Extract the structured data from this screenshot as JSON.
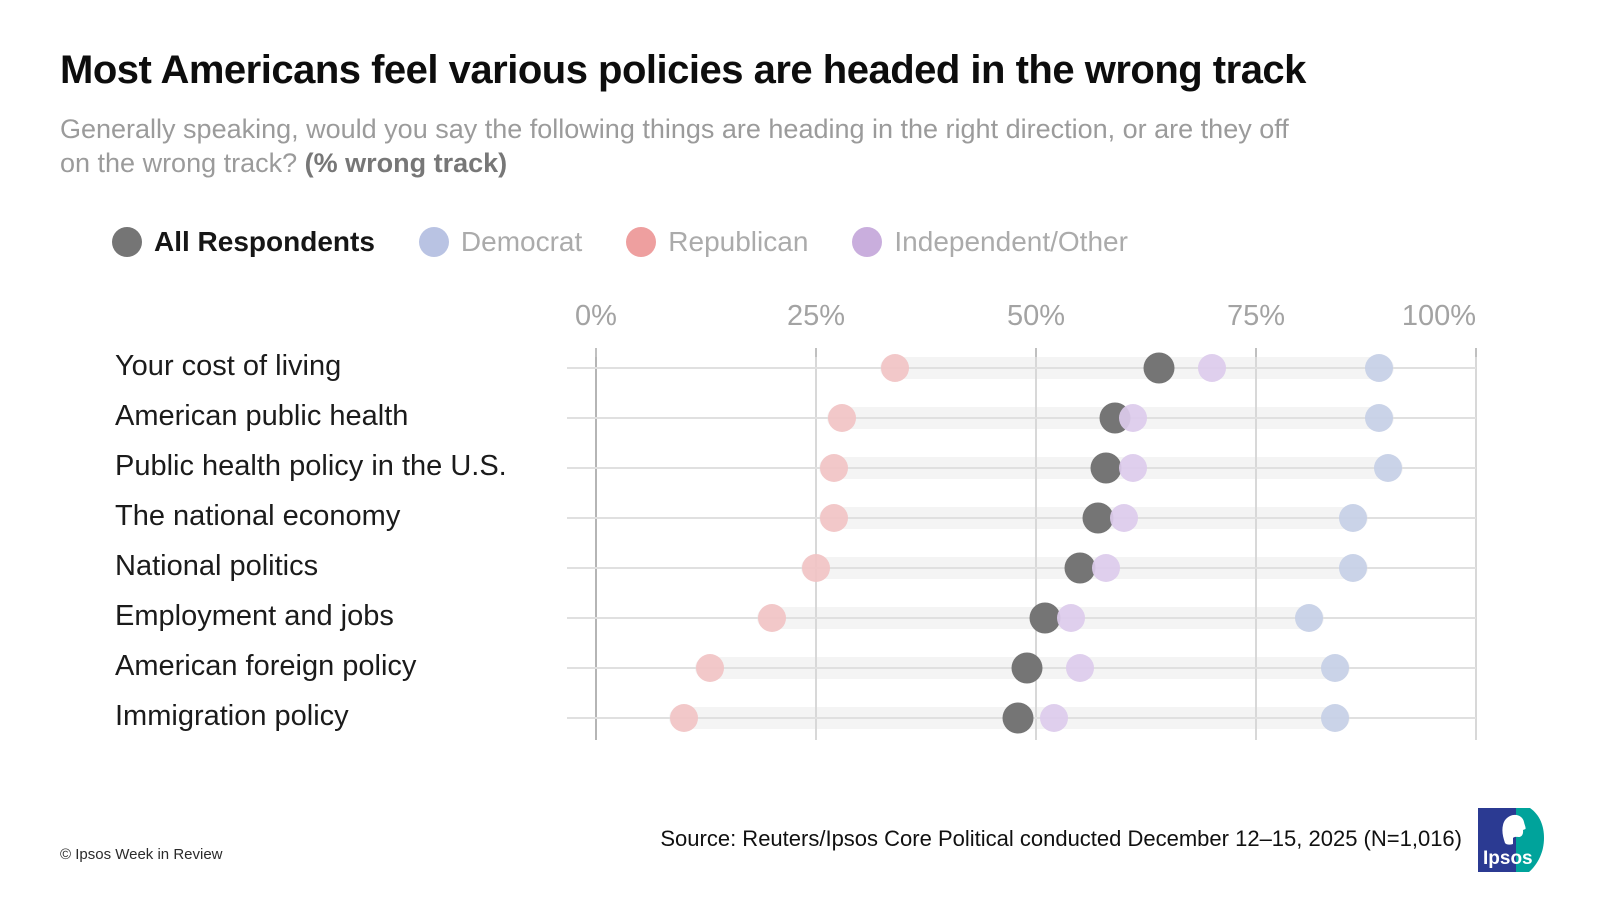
{
  "header": {
    "title": "Most Americans feel various policies are headed in the wrong track",
    "subtitle_line1": "Generally speaking, would you say the following things are heading in the right direction, or are they off",
    "subtitle_line2_prefix": "on the wrong track? ",
    "subtitle_line2_bold": "(% wrong track)"
  },
  "legend": {
    "items": [
      {
        "label": "All Respondents",
        "color": "#757575",
        "text_color": "#161616"
      },
      {
        "label": "Democrat",
        "color": "#b9c3e3",
        "text_color": "#ababab"
      },
      {
        "label": "Republican",
        "color": "#ee9f9f",
        "text_color": "#ababab"
      },
      {
        "label": "Independent/Other",
        "color": "#c9aedd",
        "text_color": "#ababab"
      }
    ]
  },
  "chart_data": {
    "type": "scatter",
    "subtype": "dot-plot",
    "xlim": [
      0,
      100
    ],
    "tick_values": [
      0,
      25,
      50,
      75,
      100
    ],
    "tick_labels": [
      "0%",
      "25%",
      "50%",
      "75%",
      "100%"
    ],
    "grid": "on",
    "legend_position": "top",
    "categories": [
      "Your cost of living",
      "American public health",
      "Public health policy in the U.S.",
      "The national economy",
      "National politics",
      "Employment and jobs",
      "American foreign policy",
      "Immigration policy"
    ],
    "series": [
      {
        "name": "All Respondents",
        "dot_color": "#757575",
        "dot_size": 31,
        "opaque": true,
        "values": [
          64,
          59,
          58,
          57,
          55,
          51,
          49,
          48
        ]
      },
      {
        "name": "Democrat",
        "dot_color": "#c6cfe6",
        "dot_size": 28,
        "opaque": false,
        "values": [
          89,
          89,
          90,
          86,
          86,
          81,
          84,
          84
        ]
      },
      {
        "name": "Republican",
        "dot_color": "#f1c3c4",
        "dot_size": 28,
        "opaque": false,
        "values": [
          34,
          28,
          27,
          27,
          25,
          20,
          13,
          10
        ]
      },
      {
        "name": "Independent/Other",
        "dot_color": "#dccbeb",
        "dot_size": 28,
        "opaque": false,
        "values": [
          70,
          61,
          61,
          60,
          58,
          54,
          55,
          52
        ]
      }
    ],
    "title": "Most Americans feel various policies are headed in the wrong track",
    "xlabel": "% wrong track",
    "ylabel": ""
  },
  "footer": {
    "source": "Source: Reuters/Ipsos Core Political conducted December 12–15, 2025 (N=1,016)",
    "copyright": "© Ipsos Week in Review",
    "logo_text": "Ipsos"
  }
}
